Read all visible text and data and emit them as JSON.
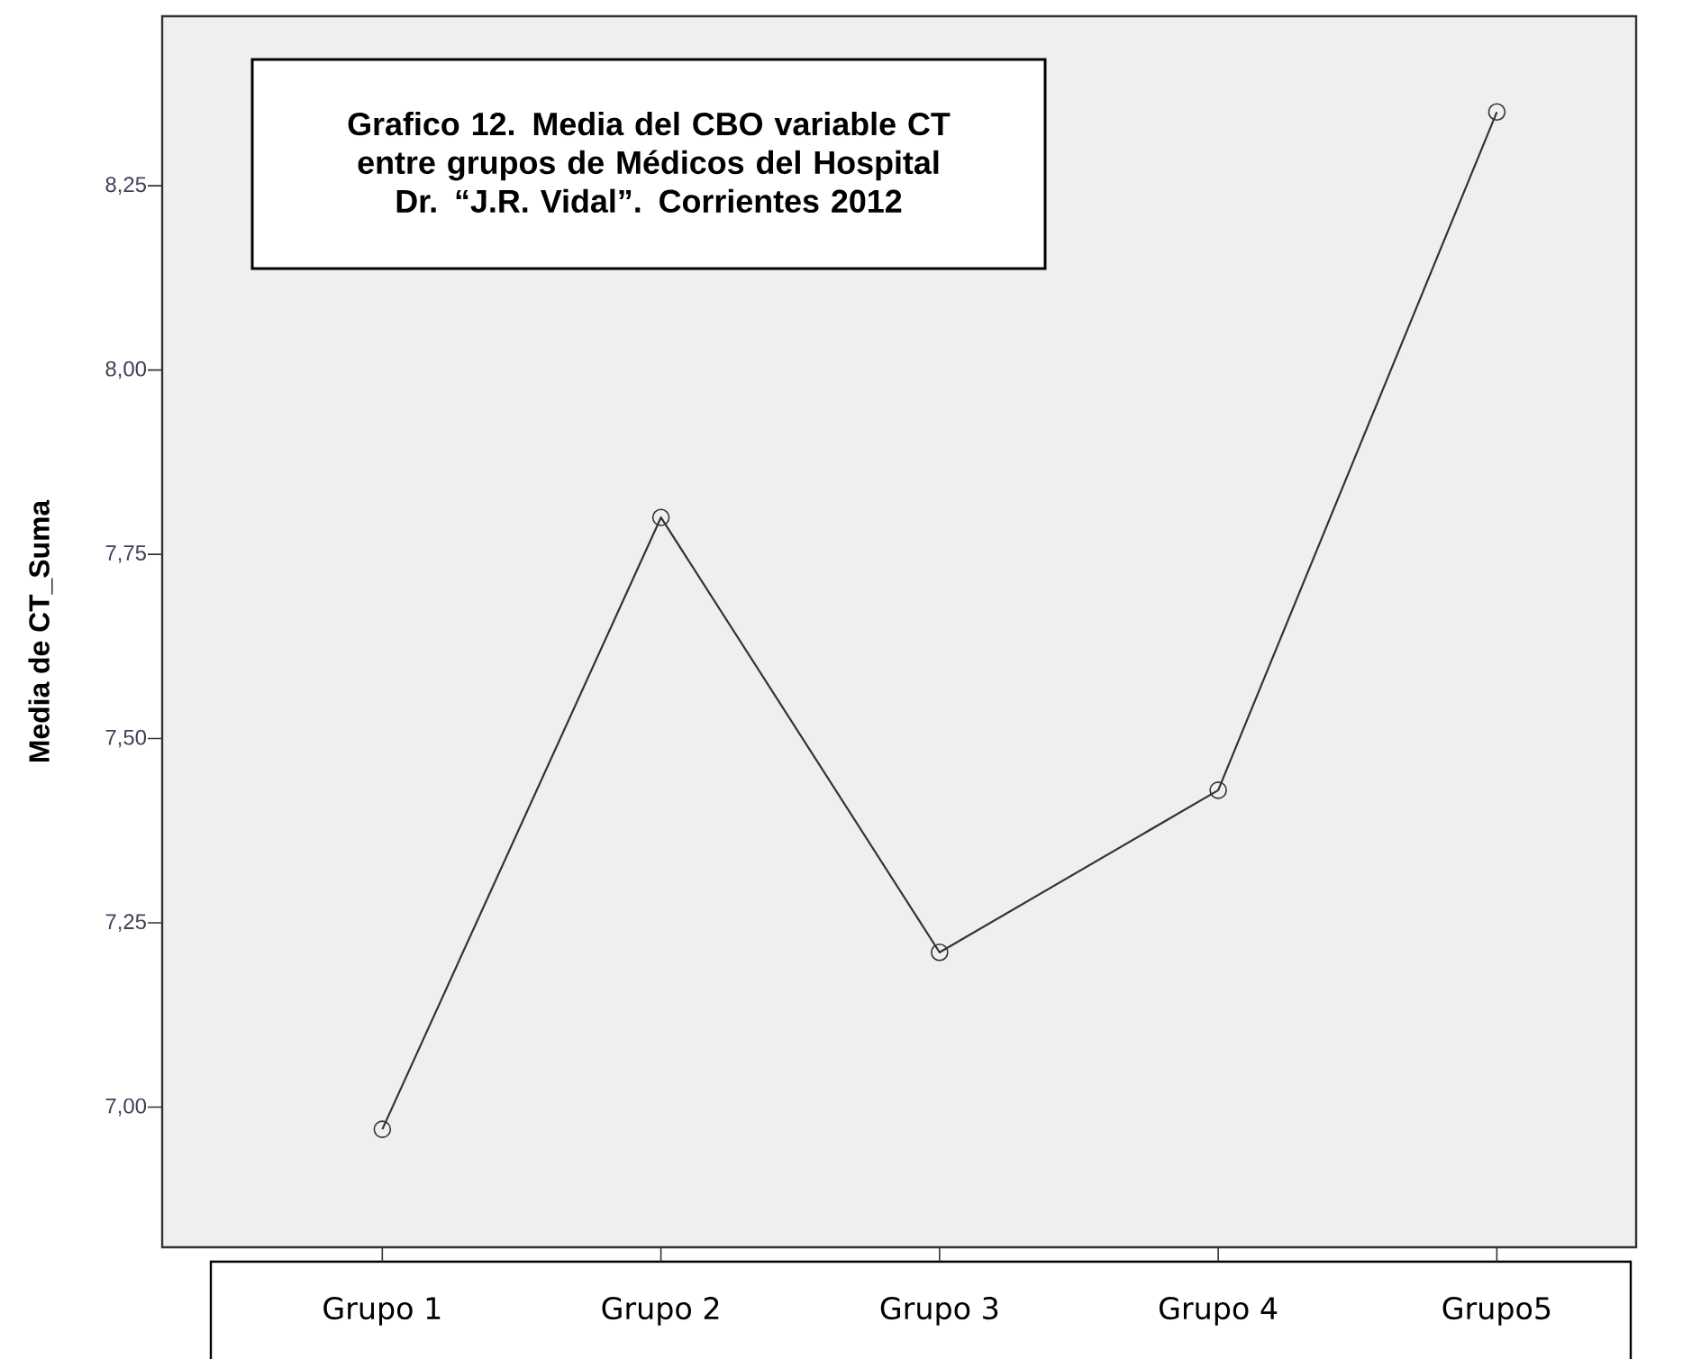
{
  "chart_data": {
    "type": "line",
    "title": "Grafico 12. Media del CBO variable CT entre grupos de Médicos del Hospital Dr. “J.R. Vidal”. Corrientes 2012",
    "ylabel": "Media de CT_Suma",
    "categories": [
      "Grupo 1",
      "Grupo 2",
      "Grupo 3",
      "Grupo 4",
      "Grupo5"
    ],
    "series": [
      {
        "color": "#333333",
        "values": [
          6.97,
          7.8,
          7.21,
          7.43,
          8.35
        ]
      }
    ],
    "ylim": [
      6.81,
      8.48
    ],
    "yticks": [
      {
        "value": 7.0,
        "label": "7,00"
      },
      {
        "value": 7.25,
        "label": "7,25"
      },
      {
        "value": 7.5,
        "label": "7,50"
      },
      {
        "value": 7.75,
        "label": "7,75"
      },
      {
        "value": 8.0,
        "label": "8,00"
      },
      {
        "value": 8.25,
        "label": "8,25"
      }
    ],
    "marker": "circle",
    "line_style": "solid",
    "grid": false,
    "legend": false
  }
}
